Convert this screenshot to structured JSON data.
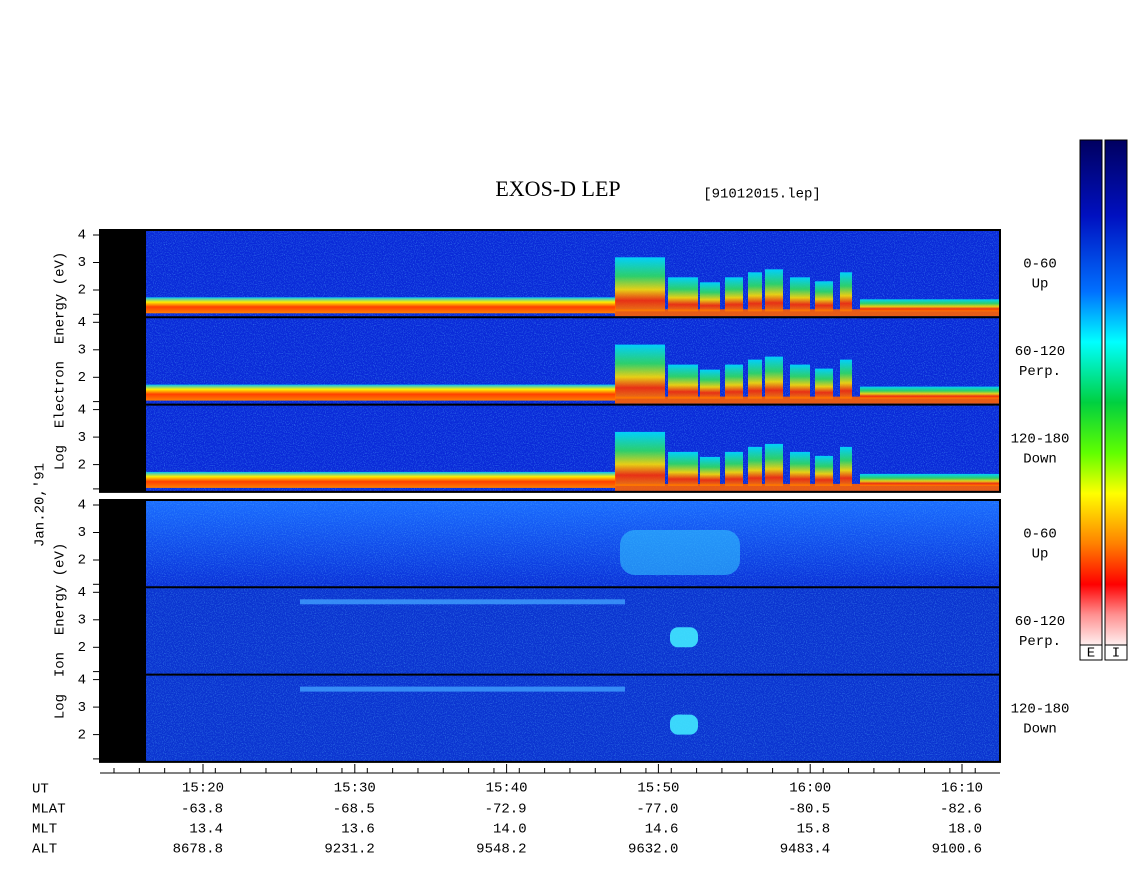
{
  "header": {
    "title": "EXOS-D LEP",
    "file": "[91012015.lep]"
  },
  "date": "Jan.20,'91",
  "colorbar_labels": [
    "E",
    "I"
  ],
  "sections": [
    {
      "axis_label": "Log  Electron  Energy (eV)",
      "panels": [
        {
          "angle": "0-60",
          "direction": "Up"
        },
        {
          "angle": "60-120",
          "direction": "Perp."
        },
        {
          "angle": "120-180",
          "direction": "Down"
        }
      ]
    },
    {
      "axis_label": "Log  Ion  Energy (eV)",
      "panels": [
        {
          "angle": "0-60",
          "direction": "Up"
        },
        {
          "angle": "60-120",
          "direction": "Perp."
        },
        {
          "angle": "120-180",
          "direction": "Down"
        }
      ]
    }
  ],
  "energy_ticks": [
    4,
    3,
    2
  ],
  "time_ticks": [
    "15:20",
    "15:30",
    "15:40",
    "15:50",
    "16:00",
    "16:10"
  ],
  "ephemeris": {
    "labels": [
      "UT",
      "MLAT",
      "MLT",
      "ALT"
    ],
    "rows": [
      [
        "-63.8",
        "-68.5",
        "-72.9",
        "-77.0",
        "-80.5",
        "-82.6"
      ],
      [
        "13.4",
        "13.6",
        "14.0",
        "14.6",
        "15.8",
        "18.0"
      ],
      [
        "8678.8",
        "9231.2",
        "9548.2",
        "9632.0",
        "9483.4",
        "9100.6"
      ]
    ]
  }
}
